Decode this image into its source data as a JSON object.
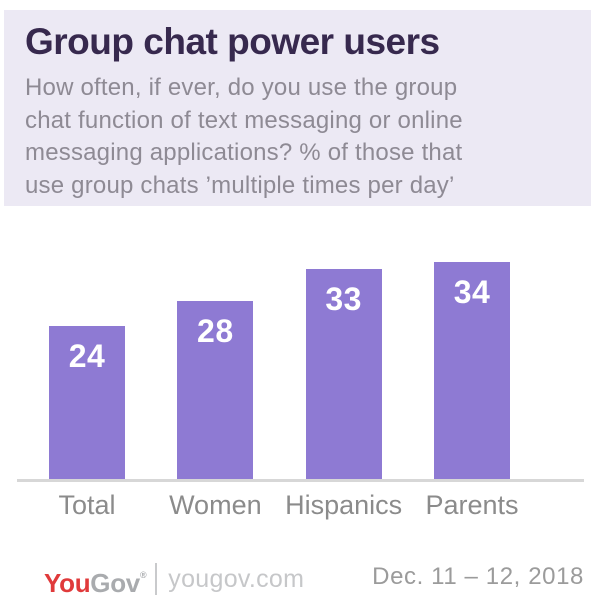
{
  "header": {
    "title": "Group chat power users",
    "subtitle_lines": [
      "How often, if ever, do you use the group",
      "chat function of text messaging or online",
      "messaging applications? % of those that",
      "use group chats ’multiple times per day’"
    ]
  },
  "chart_data": {
    "type": "bar",
    "title": "Group chat power users",
    "subtitle": "How often, if ever, do you use the group chat function of text messaging or online messaging applications? % of those that use group chats 'multiple times per day'",
    "categories": [
      "Total",
      "Women",
      "Hispanics",
      "Parents"
    ],
    "values": [
      24,
      28,
      33,
      34
    ],
    "data_labels_shown": true,
    "xlabel": "",
    "ylabel": "",
    "axis_ticks_shown": false,
    "grid": false,
    "legend": "none",
    "bar_color": "#8E7AD3",
    "data_label_color": "#FFFFFF",
    "baseline_color": "#D7D7D7"
  },
  "footer": {
    "logo_you": "You",
    "logo_gov": "Gov",
    "logo_mark": "®",
    "website": "yougov.com",
    "date": "Dec. 11 – 12, 2018"
  },
  "colors": {
    "header_panel_bg": "#ECE9F4",
    "title": "#37294E",
    "subtitle": "#8E8A94",
    "bar": "#8E7AD3",
    "category_label": "#8B8B8B",
    "logo_red": "#E03A3B",
    "logo_gray": "#A9ABAE",
    "website_gray": "#C6C7C9",
    "date_gray": "#9B9B9B"
  }
}
